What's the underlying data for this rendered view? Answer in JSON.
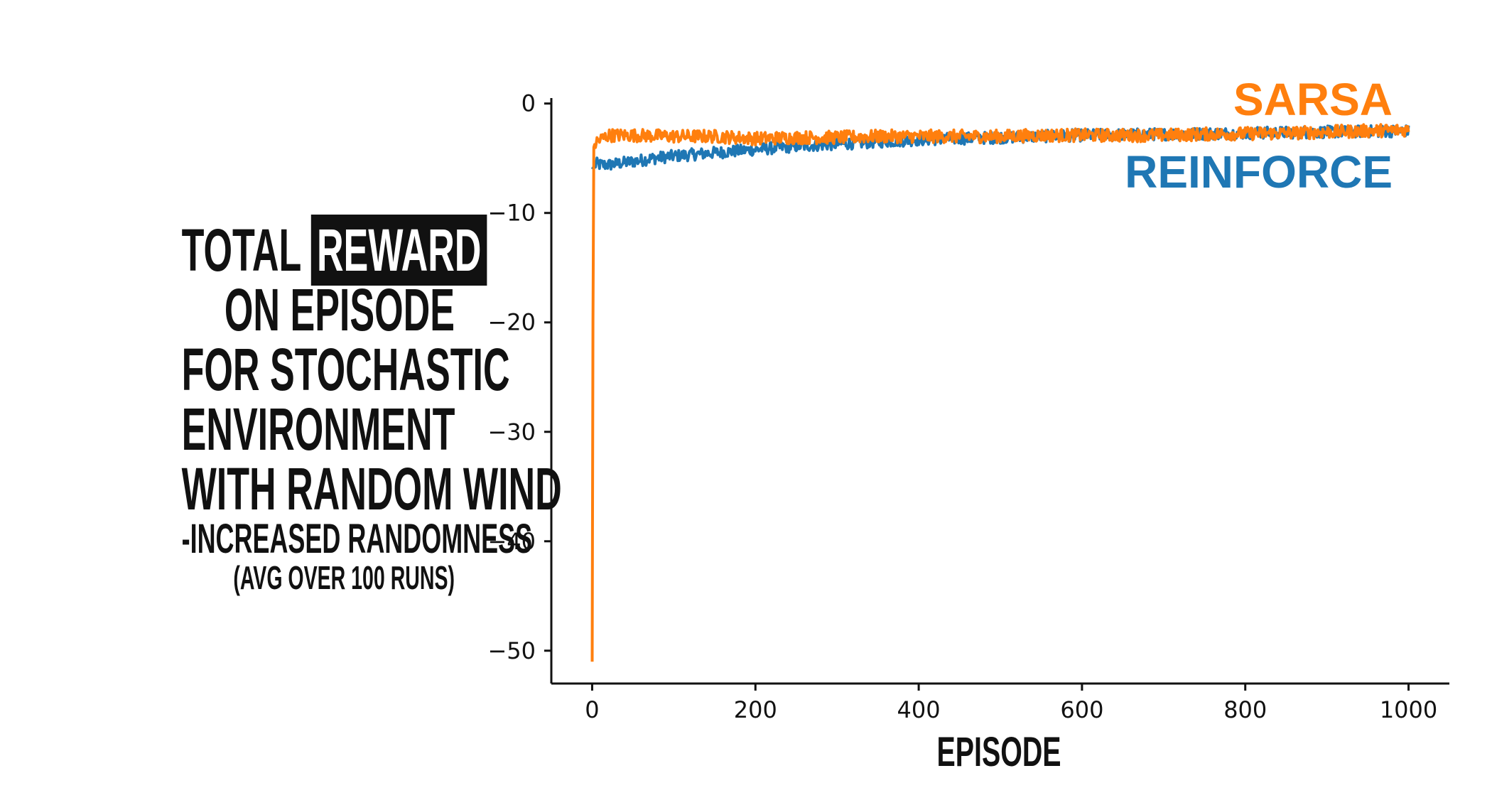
{
  "title_lines": [
    "TOTAL",
    "REWARD",
    "ON EPISODE",
    "FOR STOCHASTIC",
    "ENVIRONMENT",
    "WITH RANDOM WIND",
    "-INCREASED RANDOMNESS",
    "(AVG OVER 100 RUNS)"
  ],
  "chart_data": {
    "type": "line",
    "xlabel": "EPISODE",
    "ylabel": "",
    "xlim": [
      -50,
      1050
    ],
    "ylim": [
      -53,
      0.5
    ],
    "xticks": [
      0,
      200,
      400,
      600,
      800,
      1000
    ],
    "yticks": [
      0,
      -10,
      -20,
      -30,
      -40,
      -50
    ],
    "xtick_labels": [
      "0",
      "200",
      "400",
      "600",
      "800",
      "1000"
    ],
    "ytick_labels": [
      "0",
      "−10",
      "−20",
      "−30",
      "−40",
      "−50"
    ],
    "grid": false,
    "legend": "series labels at top-right",
    "series": [
      {
        "name": "REINFORCE",
        "color": "#1f77b4",
        "x": [
          0,
          5,
          10,
          20,
          30,
          40,
          50,
          75,
          100,
          150,
          200,
          250,
          300,
          350,
          400,
          450,
          500,
          550,
          600,
          650,
          700,
          750,
          800,
          850,
          900,
          950,
          1000
        ],
        "y": [
          -6,
          -5.5,
          -5.6,
          -5.6,
          -5.5,
          -5.4,
          -5.3,
          -5.0,
          -4.8,
          -4.5,
          -4.2,
          -3.9,
          -3.7,
          -3.5,
          -3.3,
          -3.2,
          -3.1,
          -3.0,
          -2.9,
          -2.85,
          -2.8,
          -2.75,
          -2.7,
          -2.65,
          -2.6,
          -2.55,
          -2.5
        ]
      },
      {
        "name": "SARSA",
        "color": "#ff7f0e",
        "x": [
          0,
          1,
          2,
          5,
          10,
          20,
          30,
          40,
          50,
          75,
          100,
          150,
          200,
          250,
          300,
          350,
          400,
          450,
          500,
          550,
          600,
          650,
          700,
          750,
          800,
          850,
          900,
          950,
          1000
        ],
        "y": [
          -51,
          -20,
          -4,
          -3.5,
          -3.3,
          -2.9,
          -2.9,
          -2.9,
          -2.9,
          -2.95,
          -3.0,
          -3.0,
          -3.2,
          -3.1,
          -3.1,
          -3.0,
          -3.0,
          -3.0,
          -3.0,
          -2.9,
          -2.9,
          -2.9,
          -2.9,
          -2.8,
          -2.75,
          -2.7,
          -2.6,
          -2.5,
          -2.4
        ]
      }
    ]
  }
}
